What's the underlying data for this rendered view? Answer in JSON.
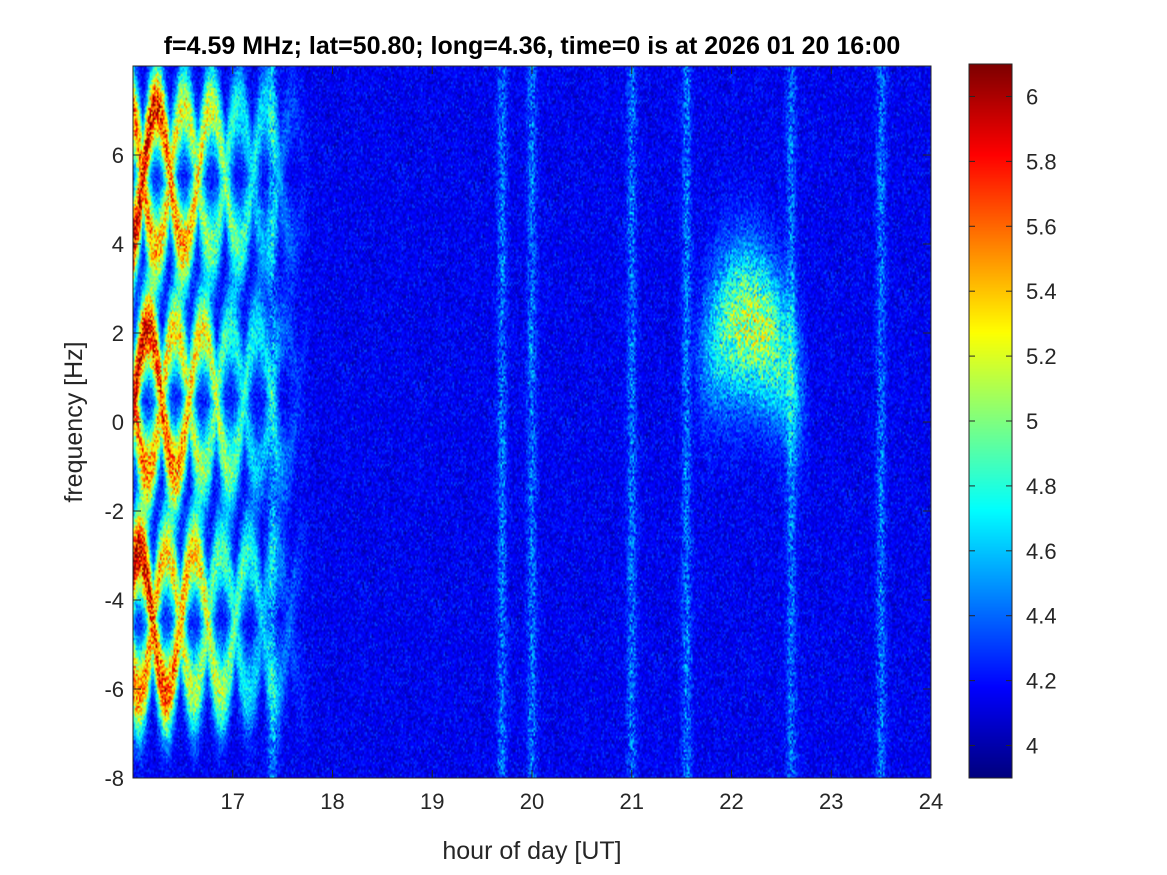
{
  "chart_data": {
    "type": "heatmap",
    "title": "f=4.59 MHz;  lat=50.80; long=4.36, time=0 is at 2026 01 20 16:00",
    "xlabel": "hour of day [UT]",
    "ylabel": "frequency [Hz]",
    "xlim": [
      16,
      24
    ],
    "ylim": [
      -8,
      8
    ],
    "x_ticks": [
      17,
      18,
      19,
      20,
      21,
      22,
      23,
      24
    ],
    "y_ticks": [
      -8,
      -6,
      -4,
      -2,
      0,
      2,
      4,
      6
    ],
    "colormap": "jet",
    "clim": [
      3.9,
      6.1
    ],
    "colorbar_ticks": [
      4,
      4.2,
      4.4,
      4.6,
      4.8,
      5,
      5.2,
      5.4,
      5.6,
      5.8,
      6
    ],
    "background_level": 4.15,
    "features": [
      {
        "desc": "strong oscillating traces",
        "x_range": [
          16.0,
          17.8
        ],
        "y_centers": [
          5.5,
          0.5,
          -4.5
        ],
        "peak": 6.0
      },
      {
        "desc": "weaker diffuse trace",
        "x_range": [
          21.6,
          22.8
        ],
        "y_range": [
          -1,
          3.5
        ],
        "peak": 5.2
      },
      {
        "desc": "vertical striations",
        "x_positions": [
          17.4,
          19.7,
          20.0,
          21.0,
          21.55,
          22.6,
          23.5
        ],
        "peak": 4.8
      }
    ]
  },
  "ui": {
    "title": "f=4.59 MHz;  lat=50.80; long=4.36, time=0 is at 2026 01 20 16:00",
    "xlabel": "hour of day [UT]",
    "ylabel": "frequency [Hz]"
  }
}
